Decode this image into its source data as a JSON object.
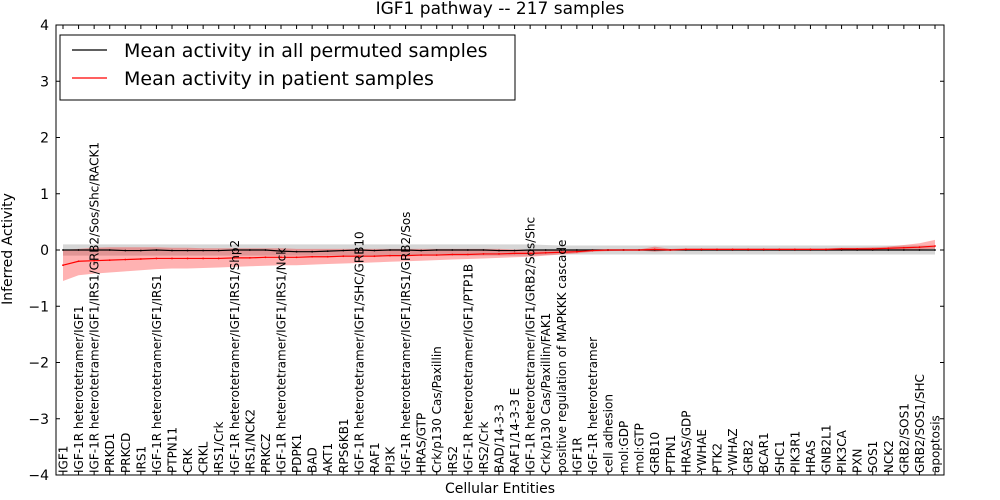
{
  "chart_data": {
    "type": "line",
    "title": "IGF1 pathway -- 217 samples",
    "xlabel": "Cellular Entities",
    "ylabel": "Inferred Activity",
    "ylim": [
      -4,
      4
    ],
    "yticks": [
      4,
      3,
      2,
      1,
      0,
      -1,
      -2,
      -3,
      -4
    ],
    "ytick_labels": [
      "4",
      "3",
      "2",
      "1",
      "0",
      "−1",
      "−2",
      "−3",
      "−4"
    ],
    "legend": {
      "placement": "top-left",
      "entries": [
        {
          "label": "Mean activity in all permuted samples",
          "color": "#000000"
        },
        {
          "label": "Mean activity in patient samples",
          "color": "#ff0000"
        }
      ]
    },
    "categories": [
      "IGF1",
      "IGF-1R heterotetramer/IGF1",
      "IGF-1R heterotetramer/IGF1/IRS1/GRB2/Sos/Shc/RACK1",
      "PRKD1",
      "PRKCD",
      "IRS1",
      "IGF-1R heterotetramer/IGF1/IRS1",
      "PTPN11",
      "CRK",
      "CRKL",
      "IRS1/Crk",
      "IGF-1R heterotetramer/IGF1/IRS1/Shp2",
      "IRS1/NCK2",
      "PRKCZ",
      "IGF-1R heterotetramer/IGF1/IRS1/Nck",
      "PDPK1",
      "BAD",
      "AKT1",
      "RPS6KB1",
      "IGF-1R heterotetramer/IGF1/SHC/GRB10",
      "RAF1",
      "PI3K",
      "IGF-1R heterotetramer/IGF1/IRS1/GRB2/Sos",
      "HRAS/GTP",
      "Crk/p130 Cas/Paxillin",
      "IRS2",
      "IGF-1R heterotetramer/IGF1/PTP1B",
      "IRS2/Crk",
      "BAD/14-3-3",
      "RAF1/14-3-3 E",
      "IGF-1R heterotetramer/IGF1/GRB2/Sos/Shc",
      "Crk/p130 Cas/Paxillin/FAK1",
      "positive regulation of MAPKKK cascade",
      "IGF1R",
      "IGF-1R heterotetramer",
      "cell adhesion",
      "mol:GDP",
      "mol:GTP",
      "GRB10",
      "PTPN1",
      "HRAS/GDP",
      "YWHAE",
      "PTK2",
      "YWHAZ",
      "GRB2",
      "BCAR1",
      "SHC1",
      "PIK3R1",
      "HRAS",
      "GNB2L1",
      "PIK3CA",
      "PXN",
      "SOS1",
      "NCK2",
      "GRB2/SOS1",
      "GRB2/SOS1/SHC",
      "apoptosis"
    ],
    "series": [
      {
        "name": "Mean activity in all permuted samples",
        "color": "#000000",
        "values": [
          0.0,
          0.0,
          0.0,
          0.0,
          -0.01,
          -0.01,
          0.0,
          -0.01,
          -0.01,
          -0.01,
          -0.01,
          0.0,
          0.0,
          0.0,
          -0.02,
          -0.03,
          -0.03,
          -0.02,
          -0.01,
          0.0,
          -0.01,
          0.0,
          0.0,
          -0.01,
          0.0,
          0.0,
          0.0,
          0.0,
          -0.01,
          -0.01,
          0.0,
          0.0,
          0.0,
          0.0,
          0.0,
          0.0,
          0.0,
          0.0,
          0.0,
          0.0,
          0.0,
          0.0,
          0.0,
          0.0,
          0.0,
          0.0,
          0.0,
          0.0,
          0.0,
          0.0,
          0.0,
          0.0,
          0.0,
          0.0,
          0.0,
          0.0,
          0.0
        ],
        "band": {
          "lower": [
            -0.1,
            -0.1,
            -0.1,
            -0.1,
            -0.1,
            -0.1,
            -0.1,
            -0.1,
            -0.1,
            -0.1,
            -0.1,
            -0.1,
            -0.1,
            -0.1,
            -0.1,
            -0.1,
            -0.1,
            -0.1,
            -0.1,
            -0.1,
            -0.1,
            -0.1,
            -0.1,
            -0.1,
            -0.1,
            -0.1,
            -0.1,
            -0.1,
            -0.1,
            -0.1,
            -0.1,
            -0.09,
            -0.08,
            -0.08,
            -0.08,
            -0.08,
            -0.08,
            -0.08,
            -0.08,
            -0.08,
            -0.08,
            -0.08,
            -0.08,
            -0.08,
            -0.08,
            -0.08,
            -0.08,
            -0.08,
            -0.08,
            -0.08,
            -0.08,
            -0.08,
            -0.08,
            -0.08,
            -0.08,
            -0.08,
            -0.08
          ],
          "upper": [
            0.1,
            0.1,
            0.1,
            0.1,
            0.1,
            0.1,
            0.1,
            0.1,
            0.1,
            0.1,
            0.1,
            0.1,
            0.1,
            0.1,
            0.1,
            0.1,
            0.1,
            0.1,
            0.1,
            0.1,
            0.1,
            0.1,
            0.1,
            0.1,
            0.1,
            0.1,
            0.1,
            0.1,
            0.1,
            0.1,
            0.1,
            0.09,
            0.08,
            0.08,
            0.08,
            0.08,
            0.08,
            0.08,
            0.08,
            0.08,
            0.08,
            0.08,
            0.08,
            0.08,
            0.08,
            0.08,
            0.08,
            0.08,
            0.08,
            0.08,
            0.08,
            0.08,
            0.08,
            0.08,
            0.08,
            0.08,
            0.08
          ]
        }
      },
      {
        "name": "Mean activity in patient samples",
        "color": "#ff0000",
        "values": [
          -0.27,
          -0.2,
          -0.19,
          -0.18,
          -0.17,
          -0.16,
          -0.15,
          -0.15,
          -0.15,
          -0.15,
          -0.15,
          -0.14,
          -0.14,
          -0.13,
          -0.13,
          -0.13,
          -0.12,
          -0.12,
          -0.11,
          -0.11,
          -0.11,
          -0.1,
          -0.1,
          -0.09,
          -0.09,
          -0.08,
          -0.08,
          -0.07,
          -0.07,
          -0.06,
          -0.06,
          -0.05,
          -0.04,
          -0.03,
          -0.01,
          0.0,
          0.0,
          0.0,
          0.01,
          0.0,
          0.01,
          0.01,
          0.01,
          0.01,
          0.01,
          0.01,
          0.01,
          0.01,
          0.01,
          0.01,
          0.02,
          0.02,
          0.02,
          0.03,
          0.04,
          0.05,
          0.07
        ],
        "band": {
          "lower": [
            -0.55,
            -0.45,
            -0.42,
            -0.4,
            -0.38,
            -0.36,
            -0.34,
            -0.33,
            -0.33,
            -0.32,
            -0.31,
            -0.3,
            -0.29,
            -0.28,
            -0.27,
            -0.27,
            -0.26,
            -0.25,
            -0.24,
            -0.23,
            -0.22,
            -0.21,
            -0.2,
            -0.19,
            -0.18,
            -0.17,
            -0.16,
            -0.15,
            -0.14,
            -0.13,
            -0.12,
            -0.1,
            -0.08,
            -0.06,
            -0.03,
            -0.02,
            -0.01,
            -0.01,
            -0.03,
            -0.01,
            -0.01,
            -0.01,
            0.0,
            0.0,
            0.0,
            0.0,
            0.0,
            0.0,
            0.0,
            0.0,
            0.0,
            0.0,
            0.0,
            0.0,
            0.0,
            0.01,
            0.02
          ],
          "upper": [
            0.0,
            0.02,
            0.04,
            0.05,
            0.05,
            0.05,
            0.05,
            0.04,
            0.04,
            0.03,
            0.03,
            0.03,
            0.03,
            0.03,
            0.03,
            0.02,
            0.02,
            0.02,
            0.02,
            0.02,
            0.02,
            0.02,
            0.02,
            0.02,
            0.02,
            0.02,
            0.02,
            0.02,
            0.02,
            0.01,
            0.01,
            0.01,
            0.01,
            0.0,
            0.01,
            0.01,
            0.01,
            0.01,
            0.06,
            0.02,
            0.03,
            0.03,
            0.03,
            0.03,
            0.03,
            0.03,
            0.03,
            0.03,
            0.03,
            0.03,
            0.04,
            0.04,
            0.05,
            0.06,
            0.09,
            0.12,
            0.18
          ]
        }
      }
    ]
  }
}
